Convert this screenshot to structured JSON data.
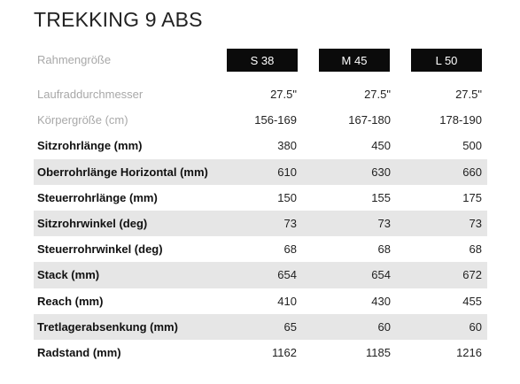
{
  "title": "TREKKING 9 ABS",
  "header": {
    "label": "Rahmengröße",
    "sizes": [
      "S 38",
      "M 45",
      "L 50"
    ]
  },
  "rows": [
    {
      "label": "Laufraddurchmesser",
      "style": "light",
      "values": [
        "27.5\"",
        "27.5\"",
        "27.5\""
      ]
    },
    {
      "label": "Körpergröße (cm)",
      "style": "light",
      "values": [
        "156-169",
        "167-180",
        "178-190"
      ]
    },
    {
      "label": "Sitzrohrlänge (mm)",
      "style": "bold",
      "values": [
        "380",
        "450",
        "500"
      ]
    },
    {
      "label": "Oberrohrlänge Horizontal (mm)",
      "style": "bold",
      "values": [
        "610",
        "630",
        "660"
      ]
    },
    {
      "label": "Steuerrohrlänge (mm)",
      "style": "bold",
      "values": [
        "150",
        "155",
        "175"
      ]
    },
    {
      "label": "Sitzrohrwinkel (deg)",
      "style": "bold",
      "values": [
        "73",
        "73",
        "73"
      ]
    },
    {
      "label": "Steuerrohrwinkel (deg)",
      "style": "bold",
      "values": [
        "68",
        "68",
        "68"
      ]
    },
    {
      "label": "Stack (mm)",
      "style": "bold",
      "values": [
        "654",
        "654",
        "672"
      ]
    },
    {
      "label": "Reach (mm)",
      "style": "bold",
      "values": [
        "410",
        "430",
        "455"
      ]
    },
    {
      "label": "Tretlagerabsenkung (mm)",
      "style": "bold",
      "values": [
        "65",
        "60",
        "60"
      ]
    },
    {
      "label": "Radstand (mm)",
      "style": "bold",
      "values": [
        "1162",
        "1185",
        "1216"
      ]
    }
  ],
  "colors": {
    "header_bg": "#0b0b0b",
    "row_shade": "#e6e6e6",
    "muted_text": "#a8a8a8"
  }
}
